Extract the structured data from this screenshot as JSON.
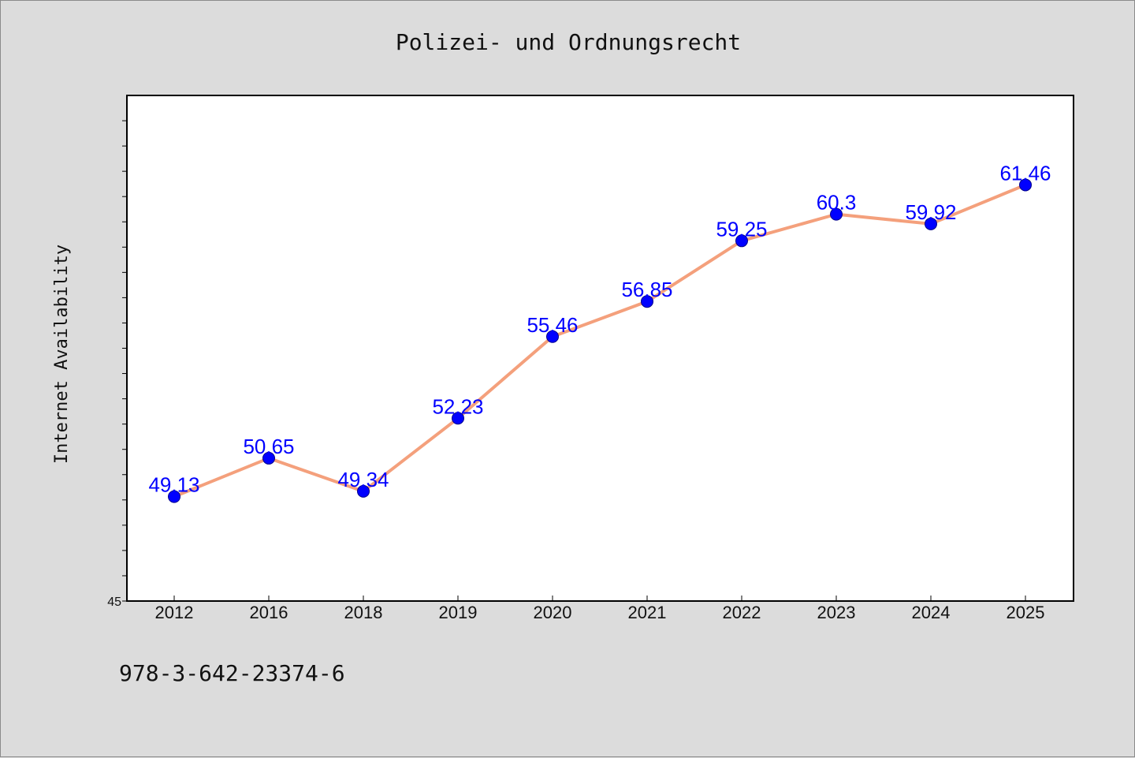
{
  "chart_data": {
    "type": "line",
    "title": "Polizei- und Ordnungsrecht",
    "xlabel": "",
    "ylabel": "Internet Availability",
    "categories": [
      "2012",
      "2016",
      "2018",
      "2019",
      "2020",
      "2021",
      "2022",
      "2023",
      "2024",
      "2025"
    ],
    "series": [
      {
        "values": [
          49.13,
          50.65,
          49.34,
          52.23,
          55.46,
          56.85,
          59.25,
          60.3,
          59.92,
          61.46
        ],
        "data_labels": [
          "49.13",
          "50.65",
          "49.34",
          "52.23",
          "55.46",
          "56.85",
          "59.25",
          "60.3",
          "59.92",
          "61.46"
        ]
      }
    ],
    "ylim": [
      45,
      65
    ],
    "y_tick_labels": [
      "45"
    ],
    "line_color": "#f4a07c",
    "marker_color": "#0000ff",
    "label_color": "#0000ff",
    "grid": false,
    "legend": "none"
  },
  "footer": {
    "isbn": "978-3-642-23374-6"
  }
}
